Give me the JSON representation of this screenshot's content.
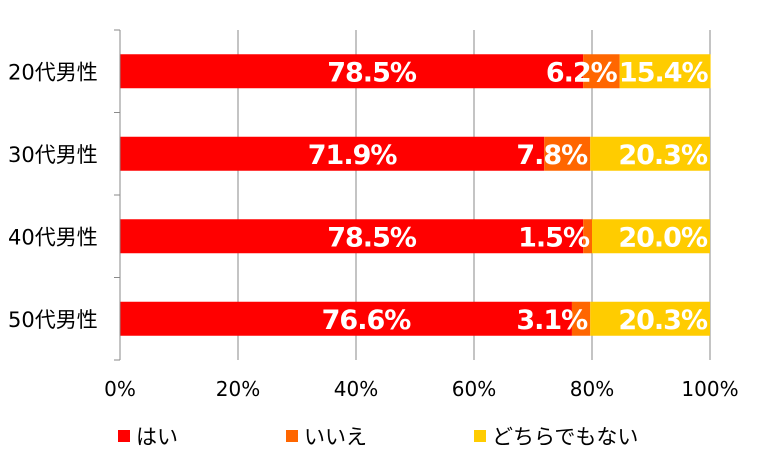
{
  "chart_data": {
    "type": "bar",
    "orientation": "horizontal",
    "stacked": true,
    "categories": [
      "20代男性",
      "30代男性",
      "40代男性",
      "50代男性"
    ],
    "series": [
      {
        "name": "はい",
        "color": "#ff0000",
        "values": [
          78.5,
          71.9,
          78.5,
          76.6
        ],
        "labels": [
          "78.5%",
          "71.9%",
          "78.5%",
          "76.6%"
        ]
      },
      {
        "name": "いいえ",
        "color": "#ff6600",
        "values": [
          6.2,
          7.8,
          1.5,
          3.1
        ],
        "labels": [
          "6.2%",
          "7.8%",
          "1.5%",
          "3.1%"
        ]
      },
      {
        "name": "どちらでもない",
        "color": "#ffcc00",
        "values": [
          15.4,
          20.3,
          20.0,
          20.3
        ],
        "labels": [
          "15.4%",
          "20.3%",
          "20.0%",
          "20.3%"
        ]
      }
    ],
    "xlim": [
      0,
      100
    ],
    "xticks": [
      "0%",
      "20%",
      "40%",
      "60%",
      "80%",
      "100%"
    ],
    "grid": true,
    "legend_position": "bottom"
  }
}
